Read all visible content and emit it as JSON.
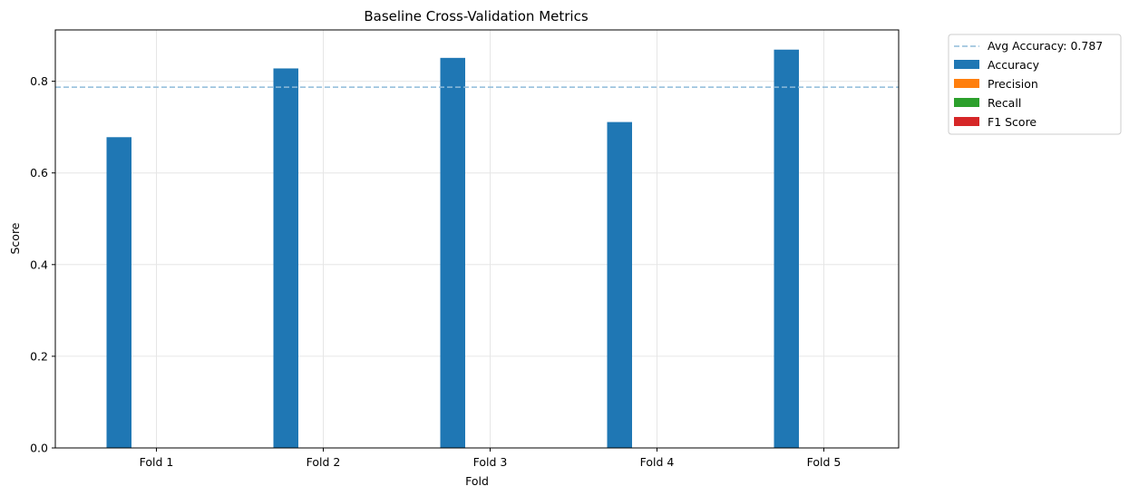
{
  "chart_data": {
    "type": "bar",
    "title": "Baseline Cross-Validation Metrics",
    "xlabel": "Fold",
    "ylabel": "Score",
    "categories": [
      "Fold 1",
      "Fold 2",
      "Fold 3",
      "Fold 4",
      "Fold 5"
    ],
    "series": [
      {
        "name": "Accuracy",
        "color": "#1f77b4",
        "values": [
          0.678,
          0.828,
          0.851,
          0.711,
          0.869
        ]
      },
      {
        "name": "Precision",
        "color": "#ff7f0e",
        "values": [
          0,
          0,
          0,
          0,
          0
        ]
      },
      {
        "name": "Recall",
        "color": "#2ca02c",
        "values": [
          0,
          0,
          0,
          0,
          0
        ]
      },
      {
        "name": "F1 Score",
        "color": "#d62728",
        "values": [
          0,
          0,
          0,
          0,
          0
        ]
      }
    ],
    "reference_line": {
      "label": "Avg Accuracy: 0.787",
      "value": 0.787,
      "color": "#8fbbd9",
      "style": "dashed"
    },
    "yticks": [
      "0.0",
      "0.2",
      "0.4",
      "0.6",
      "0.8"
    ],
    "ytick_values": [
      0,
      0.2,
      0.4,
      0.6,
      0.8
    ],
    "ylim": [
      0,
      0.912
    ],
    "grid": true,
    "legend_placement": "outside-top-right"
  }
}
